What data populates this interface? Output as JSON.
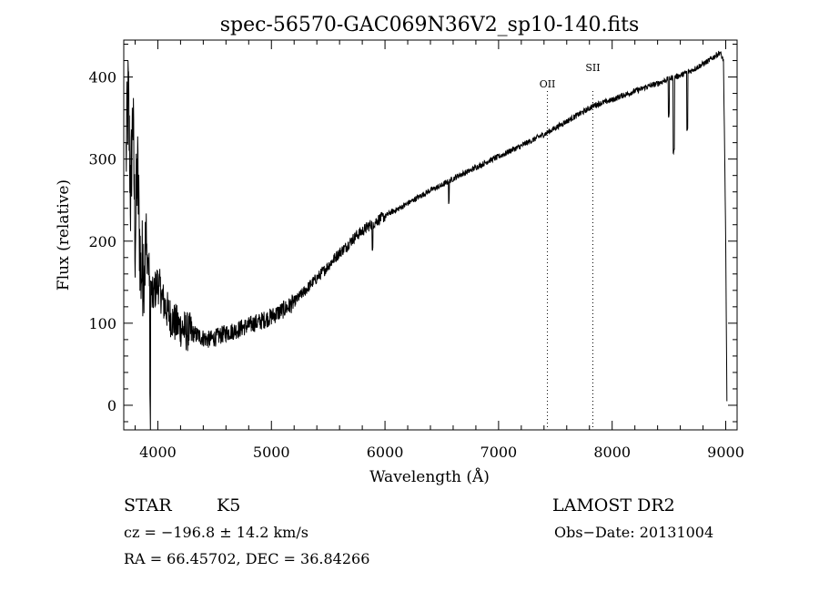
{
  "chart_data": {
    "type": "line",
    "title": "spec-56570-GAC069N36V2_sp10-140.fits",
    "xlabel": "Wavelength (Å)",
    "ylabel": "Flux (relative)",
    "xlim": [
      3700,
      9100
    ],
    "ylim": [
      -30,
      445
    ],
    "x_ticks": [
      "4000",
      "5000",
      "6000",
      "7000",
      "8000",
      "9000"
    ],
    "y_ticks": [
      "0",
      "100",
      "200",
      "300",
      "400"
    ],
    "x_tick_values": [
      4000,
      5000,
      6000,
      7000,
      8000,
      9000
    ],
    "y_tick_values": [
      0,
      100,
      200,
      300,
      400
    ],
    "grid": false,
    "line_color": "#000000",
    "series": [
      {
        "x": [
          3720,
          3740,
          3760,
          3780,
          3800,
          3820,
          3850,
          3900,
          3950,
          4000,
          4050,
          4100,
          4150,
          4200,
          4250,
          4300,
          4350,
          4400,
          4450,
          4500,
          4550,
          4600,
          4650,
          4700,
          4750,
          4800,
          4850,
          4900,
          4950,
          5000,
          5050,
          5100,
          5150,
          5200,
          5250,
          5300,
          5350,
          5400,
          5450,
          5500,
          5550,
          5600,
          5650,
          5700,
          5750,
          5800,
          5850,
          5900,
          5950,
          6000,
          6050,
          6100,
          6150,
          6200,
          6250,
          6300,
          6350,
          6400,
          6450,
          6500,
          6550,
          6600,
          6650,
          6700,
          6750,
          6800,
          6850,
          6900,
          6950,
          7000,
          7050,
          7100,
          7150,
          7200,
          7250,
          7300,
          7350,
          7400,
          7450,
          7500,
          7550,
          7600,
          7650,
          7700,
          7750,
          7800,
          7850,
          7900,
          7950,
          8000,
          8050,
          8100,
          8150,
          8200,
          8250,
          8300,
          8350,
          8400,
          8450,
          8500,
          8550,
          8600,
          8650,
          8700,
          8750,
          8800,
          8850,
          8900,
          8950,
          8980,
          9000,
          9010
        ],
        "y": [
          300,
          380,
          250,
          360,
          200,
          290,
          160,
          190,
          130,
          150,
          125,
          110,
          100,
          95,
          90,
          88,
          85,
          82,
          80,
          82,
          85,
          88,
          90,
          92,
          95,
          97,
          100,
          102,
          105,
          108,
          112,
          116,
          120,
          126,
          133,
          140,
          148,
          155,
          162,
          170,
          178,
          186,
          192,
          200,
          207,
          212,
          218,
          222,
          227,
          230,
          235,
          238,
          242,
          246,
          250,
          254,
          258,
          262,
          265,
          268,
          272,
          276,
          280,
          283,
          286,
          290,
          293,
          297,
          300,
          303,
          306,
          310,
          313,
          316,
          320,
          323,
          327,
          330,
          334,
          338,
          342,
          346,
          350,
          354,
          358,
          362,
          366,
          368,
          370,
          372,
          375,
          378,
          380,
          383,
          385,
          388,
          390,
          392,
          395,
          398,
          400,
          402,
          405,
          408,
          412,
          416,
          420,
          425,
          430,
          420,
          200,
          5
        ]
      }
    ],
    "lines": [
      {
        "label": "OII",
        "x": 7430
      },
      {
        "label": "SII",
        "x": 7830
      }
    ]
  },
  "info": {
    "class": "STAR",
    "subclass": "K5",
    "survey": "LAMOST DR2",
    "cz": "cz = −196.8 ± 14.2 km/s",
    "obs_date": "Obs−Date: 20131004",
    "coords": "RA =  66.45702, DEC =  36.84266"
  }
}
